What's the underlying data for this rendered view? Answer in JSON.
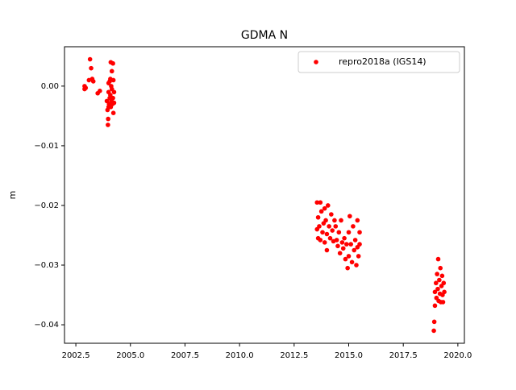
{
  "chart_data": {
    "type": "scatter",
    "title": "GDMA N",
    "y_label": "m",
    "x": [
      2002.9,
      2002.9,
      2002.95,
      2003.1,
      2003.15,
      2003.2,
      2003.25,
      2003.3,
      2003.5,
      2003.6,
      2003.92,
      2003.95,
      2003.97,
      2003.98,
      2004.0,
      2004.0,
      2004.02,
      2004.05,
      2004.05,
      2004.08,
      2004.1,
      2004.1,
      2004.12,
      2004.13,
      2004.15,
      2004.15,
      2004.18,
      2004.2,
      2004.2,
      2004.22,
      2004.22,
      2004.25,
      2004.25,
      2004.0,
      2004.08,
      2013.55,
      2013.55,
      2013.6,
      2013.6,
      2013.65,
      2013.7,
      2013.7,
      2013.75,
      2013.8,
      2013.85,
      2013.9,
      2013.9,
      2013.95,
      2014.0,
      2014.0,
      2014.05,
      2014.1,
      2014.15,
      2014.2,
      2014.25,
      2014.3,
      2014.35,
      2014.4,
      2014.45,
      2014.5,
      2014.55,
      2014.6,
      2014.65,
      2014.7,
      2014.75,
      2014.8,
      2014.85,
      2014.9,
      2014.95,
      2015.0,
      2015.0,
      2015.05,
      2015.1,
      2015.15,
      2015.2,
      2015.25,
      2015.3,
      2015.35,
      2015.4,
      2015.4,
      2015.45,
      2015.5,
      2015.5,
      2018.9,
      2018.92,
      2018.95,
      2018.95,
      2019.0,
      2019.02,
      2019.05,
      2019.08,
      2019.1,
      2019.12,
      2019.15,
      2019.18,
      2019.2,
      2019.22,
      2019.25,
      2019.28,
      2019.3,
      2019.32,
      2019.35,
      2019.38
    ],
    "series": [
      {
        "name": "repro2018a (IGS14)",
        "color": "#ff0000",
        "values": [
          -0.0005,
          0.0,
          -0.0003,
          0.001,
          0.0045,
          0.003,
          0.0012,
          0.0008,
          -0.0012,
          -0.0008,
          -0.0025,
          -0.004,
          -0.0065,
          -0.0055,
          0.0005,
          -0.001,
          -0.003,
          0.0008,
          -0.002,
          -0.0015,
          0.004,
          -0.0035,
          0.0,
          -0.0025,
          0.0025,
          -0.0005,
          -0.003,
          0.0038,
          -0.002,
          -0.0045,
          0.001,
          -0.001,
          -0.0028,
          -0.0035,
          0.0012,
          -0.0195,
          -0.024,
          -0.0255,
          -0.022,
          -0.0235,
          -0.0195,
          -0.0258,
          -0.021,
          -0.0245,
          -0.023,
          -0.0205,
          -0.0262,
          -0.0225,
          -0.0248,
          -0.0275,
          -0.02,
          -0.0235,
          -0.0255,
          -0.0215,
          -0.0242,
          -0.026,
          -0.0225,
          -0.0235,
          -0.0258,
          -0.0268,
          -0.0245,
          -0.028,
          -0.0225,
          -0.0262,
          -0.0272,
          -0.0255,
          -0.029,
          -0.0265,
          -0.0305,
          -0.0245,
          -0.0285,
          -0.0218,
          -0.0265,
          -0.0295,
          -0.0235,
          -0.0275,
          -0.0258,
          -0.03,
          -0.0225,
          -0.027,
          -0.0285,
          -0.0245,
          -0.0265,
          -0.041,
          -0.0395,
          -0.0368,
          -0.0345,
          -0.033,
          -0.0355,
          -0.0315,
          -0.034,
          -0.029,
          -0.036,
          -0.0325,
          -0.0348,
          -0.0305,
          -0.0362,
          -0.0335,
          -0.0318,
          -0.035,
          -0.0362,
          -0.033,
          -0.0345
        ]
      }
    ],
    "xlim": [
      2001.98,
      2020.3
    ],
    "ylim": [
      -0.0431,
      0.0066
    ],
    "xticks": [
      2002.5,
      {
        "value": 2005,
        "label": "2005.0"
      },
      2007.5,
      {
        "value": 2010,
        "label": "2010.0"
      },
      2012.5,
      {
        "value": 2015,
        "label": "2015.0"
      },
      2017.5,
      {
        "value": 2020,
        "label": "2020.0"
      }
    ],
    "yticks": [
      {
        "value": 0,
        "label": "0.00"
      },
      {
        "value": -0.01,
        "label": "−0.01"
      },
      {
        "value": -0.02,
        "label": "−0.02"
      },
      {
        "value": -0.03,
        "label": "−0.03"
      },
      {
        "value": -0.04,
        "label": "−0.04"
      }
    ],
    "legend": "upper right"
  }
}
